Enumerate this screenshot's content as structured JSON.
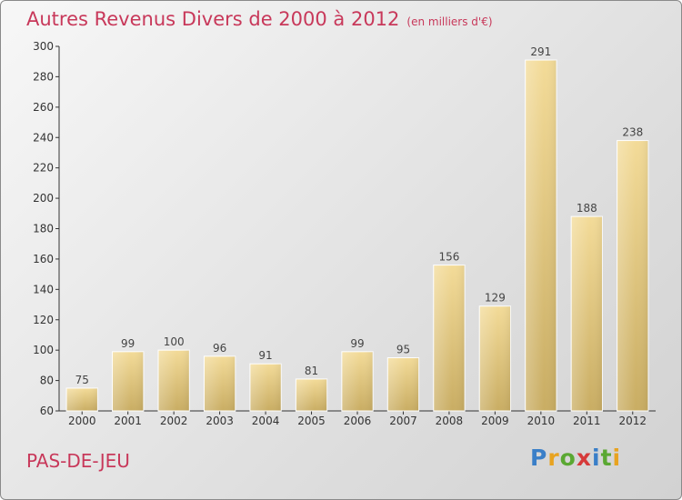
{
  "title": "Autres Revenus Divers de 2000 à 2012",
  "subtitle": "(en milliers d'€)",
  "commune": "PAS-DE-JEU",
  "logo": {
    "letters": [
      "P",
      "r",
      "o",
      "x",
      "i",
      "t",
      "i"
    ],
    "colors": [
      "#3a7fc8",
      "#e8a320",
      "#5aa832",
      "#d63a3a",
      "#3a7fc8",
      "#5aa832",
      "#e8a320"
    ]
  },
  "colors": {
    "title": "#c8385a",
    "bar": "#e8cf86",
    "axis": "#333333"
  },
  "chart_data": {
    "type": "bar",
    "title": "Autres Revenus Divers de 2000 à 2012",
    "categories": [
      "2000",
      "2001",
      "2002",
      "2003",
      "2004",
      "2005",
      "2006",
      "2007",
      "2008",
      "2009",
      "2010",
      "2011",
      "2012"
    ],
    "values": [
      75,
      99,
      100,
      96,
      91,
      81,
      99,
      95,
      156,
      129,
      291,
      188,
      238
    ],
    "ylim": [
      60,
      300
    ],
    "yticks": [
      60,
      80,
      100,
      120,
      140,
      160,
      180,
      200,
      220,
      240,
      260,
      280,
      300
    ],
    "grid": false,
    "legend": "none"
  }
}
